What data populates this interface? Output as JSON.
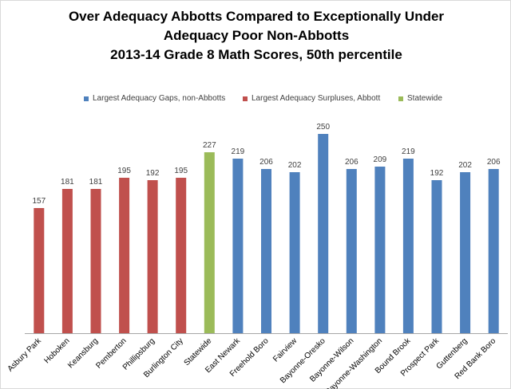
{
  "chart_data": {
    "type": "bar",
    "title_lines": [
      "Over Adequacy Abbotts Compared to Exceptionally Under",
      "Adequacy Poor Non-Abbotts",
      "2013-14 Grade 8 Math Scores, 50th percentile"
    ],
    "xlabel": "",
    "ylabel": "",
    "ylim": [
      0,
      270
    ],
    "grid": false,
    "legend_position": "top",
    "series": [
      {
        "name": "Largest Adequacy Gaps, non-Abbotts",
        "color": "#4f81bd"
      },
      {
        "name": "Largest Adequacy Surpluses, Abbott",
        "color": "#c0504d"
      },
      {
        "name": "Statewide",
        "color": "#9bbb59"
      }
    ],
    "bars": [
      {
        "category": "Asbury Park",
        "value": 157,
        "series": 1
      },
      {
        "category": "Hoboken",
        "value": 181,
        "series": 1
      },
      {
        "category": "Keansburg",
        "value": 181,
        "series": 1
      },
      {
        "category": "Pemberton",
        "value": 195,
        "series": 1
      },
      {
        "category": "Phillipsburg",
        "value": 192,
        "series": 1
      },
      {
        "category": "Burlington City",
        "value": 195,
        "series": 1
      },
      {
        "category": "Statewide",
        "value": 227,
        "series": 2
      },
      {
        "category": "East Newark",
        "value": 219,
        "series": 0
      },
      {
        "category": "Freehold Boro",
        "value": 206,
        "series": 0
      },
      {
        "category": "Fairview",
        "value": 202,
        "series": 0
      },
      {
        "category": "Bayonne-Oresko",
        "value": 250,
        "series": 0
      },
      {
        "category": "Bayonne-Wilson",
        "value": 206,
        "series": 0
      },
      {
        "category": "Bayonne-Washington",
        "value": 209,
        "series": 0
      },
      {
        "category": "Bound Brook",
        "value": 219,
        "series": 0
      },
      {
        "category": "Prospect Park",
        "value": 192,
        "series": 0
      },
      {
        "category": "Guttenberg",
        "value": 202,
        "series": 0
      },
      {
        "category": "Red Bank Boro",
        "value": 206,
        "series": 0
      }
    ]
  }
}
